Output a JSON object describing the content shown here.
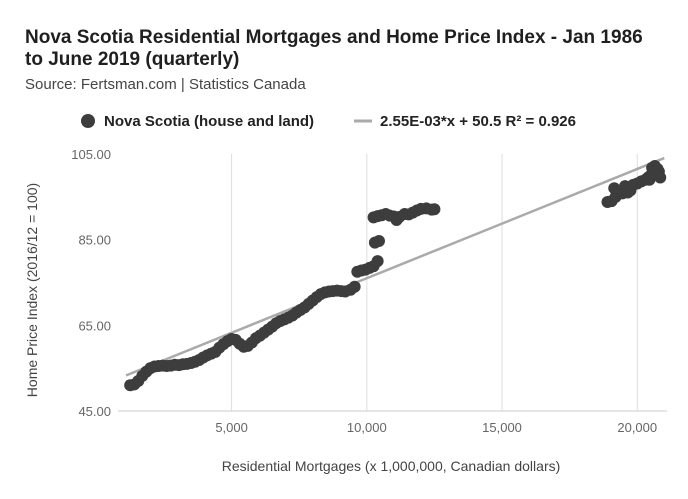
{
  "title": "Nova Scotia Residential Mortgages and Home Price Index - Jan 1986 to June 2019 (quarterly)",
  "subtitle": "Source: Fertsman.com | Statistics Canada",
  "chart_data": {
    "type": "scatter",
    "xlabel": "Residential Mortgages (x 1,000,000, Canadian dollars)",
    "ylabel": "Home Price Index (2016/12 = 100)",
    "xlim": [
      800,
      21100
    ],
    "ylim": [
      45,
      105
    ],
    "x_ticks": [
      5000,
      10000,
      15000,
      20000
    ],
    "x_tick_labels": [
      "5,000",
      "10,000",
      "15,000",
      "20,000"
    ],
    "y_ticks": [
      45,
      65,
      85,
      105
    ],
    "y_tick_labels": [
      "45.00",
      "65.00",
      "85.00",
      "105.00"
    ],
    "grid": "vertical",
    "legend_position": "top",
    "series": [
      {
        "name": "Nova Scotia (house and land)",
        "color": "#3d3d3d",
        "points": [
          [
            1250,
            51.0
          ],
          [
            1400,
            51.2
          ],
          [
            1550,
            52.0
          ],
          [
            1700,
            53.2
          ],
          [
            1850,
            54.2
          ],
          [
            2000,
            55.0
          ],
          [
            2150,
            55.4
          ],
          [
            2300,
            55.5
          ],
          [
            2450,
            55.6
          ],
          [
            2600,
            55.5
          ],
          [
            2750,
            55.6
          ],
          [
            2900,
            55.8
          ],
          [
            3050,
            55.7
          ],
          [
            3200,
            55.9
          ],
          [
            3350,
            56.0
          ],
          [
            3500,
            56.2
          ],
          [
            3650,
            56.5
          ],
          [
            3800,
            56.9
          ],
          [
            3950,
            57.5
          ],
          [
            4100,
            58.0
          ],
          [
            4250,
            58.4
          ],
          [
            4400,
            58.8
          ],
          [
            4550,
            59.8
          ],
          [
            4700,
            60.6
          ],
          [
            4850,
            61.3
          ],
          [
            5000,
            61.8
          ],
          [
            5150,
            61.6
          ],
          [
            5300,
            60.7
          ],
          [
            5450,
            60.0
          ],
          [
            5600,
            60.2
          ],
          [
            5750,
            61.0
          ],
          [
            5900,
            62.0
          ],
          [
            6050,
            62.6
          ],
          [
            6200,
            63.3
          ],
          [
            6350,
            64.0
          ],
          [
            6500,
            64.7
          ],
          [
            6650,
            65.5
          ],
          [
            6800,
            66.0
          ],
          [
            6950,
            66.4
          ],
          [
            7100,
            66.8
          ],
          [
            7250,
            67.3
          ],
          [
            7400,
            68.0
          ],
          [
            7550,
            68.6
          ],
          [
            7700,
            69.2
          ],
          [
            7850,
            70.0
          ],
          [
            8000,
            70.8
          ],
          [
            8150,
            71.6
          ],
          [
            8300,
            72.3
          ],
          [
            8450,
            72.7
          ],
          [
            8600,
            72.9
          ],
          [
            8750,
            73.0
          ],
          [
            8900,
            73.1
          ],
          [
            9050,
            73.0
          ],
          [
            9200,
            72.9
          ],
          [
            9400,
            73.3
          ],
          [
            9550,
            74.0
          ],
          [
            9650,
            77.5
          ],
          [
            9800,
            77.8
          ],
          [
            9950,
            78.0
          ],
          [
            10100,
            78.4
          ],
          [
            10250,
            78.8
          ],
          [
            10400,
            80.0
          ],
          [
            10300,
            84.3
          ],
          [
            10450,
            84.7
          ],
          [
            10250,
            90.2
          ],
          [
            10400,
            90.5
          ],
          [
            10550,
            90.7
          ],
          [
            10700,
            91.0
          ],
          [
            10850,
            90.6
          ],
          [
            11000,
            90.4
          ],
          [
            11100,
            89.6
          ],
          [
            11200,
            90.3
          ],
          [
            11400,
            91.0
          ],
          [
            11550,
            90.9
          ],
          [
            11700,
            91.3
          ],
          [
            11850,
            91.8
          ],
          [
            12000,
            92.2
          ],
          [
            12200,
            92.3
          ],
          [
            12400,
            92.0
          ],
          [
            12500,
            92.1
          ],
          [
            18900,
            93.8
          ],
          [
            19050,
            94.0
          ],
          [
            19200,
            95.0
          ],
          [
            19150,
            97.0
          ],
          [
            19350,
            96.2
          ],
          [
            19450,
            95.8
          ],
          [
            19550,
            97.5
          ],
          [
            19650,
            96.0
          ],
          [
            19750,
            96.5
          ],
          [
            19850,
            97.8
          ],
          [
            20000,
            98.1
          ],
          [
            20150,
            98.6
          ],
          [
            20300,
            99.0
          ],
          [
            20400,
            99.5
          ],
          [
            20500,
            100.0
          ],
          [
            20600,
            100.3
          ],
          [
            20700,
            100.5
          ],
          [
            20800,
            100.9
          ],
          [
            20550,
            101.8
          ],
          [
            20650,
            102.2
          ],
          [
            20750,
            101.5
          ],
          [
            20850,
            99.5
          ],
          [
            20450,
            99.0
          ]
        ]
      }
    ],
    "trendline": {
      "name": "2.55E-03*x + 50.5 R² = 0.926",
      "color": "#aaaaaa",
      "slope": 0.00255,
      "intercept": 50.5,
      "x_range": [
        1100,
        21000
      ]
    }
  }
}
